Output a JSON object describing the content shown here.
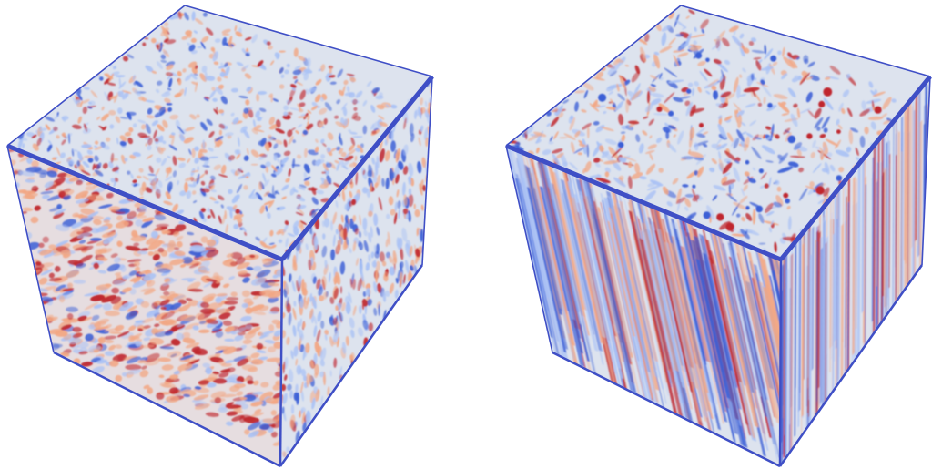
{
  "figure": {
    "panels": [
      {
        "id": "left",
        "style": "isotropic",
        "seed": 11
      },
      {
        "id": "right",
        "style": "anisotropic",
        "seed": 47
      }
    ],
    "colors": {
      "edge": "#3f4fc6",
      "base": "#dde3ee",
      "red": "#c0272d",
      "light_red": "#f2a784",
      "blue": "#3b5fd6",
      "light_blue": "#a9c1f5"
    }
  }
}
